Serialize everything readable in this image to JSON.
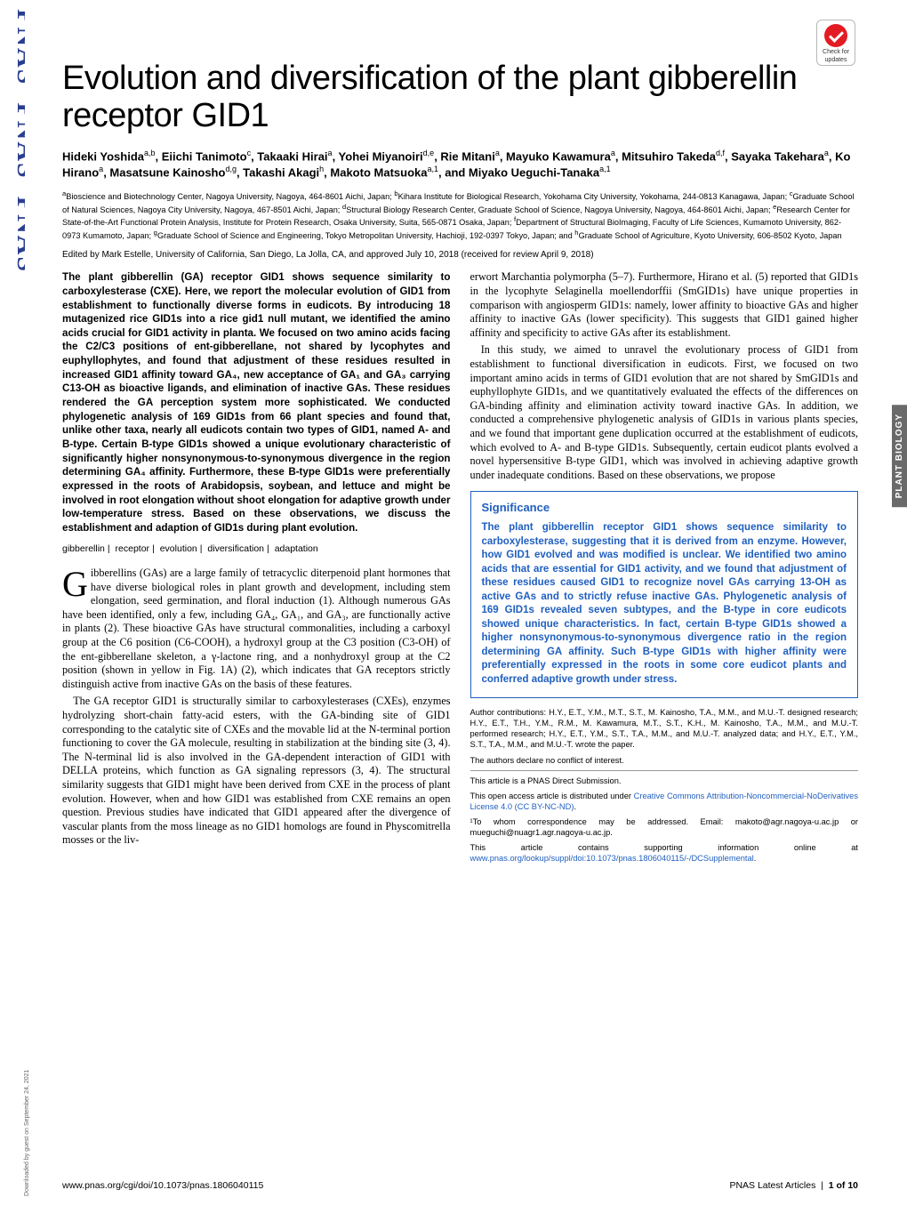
{
  "badge": {
    "line1": "Check for",
    "line2": "updates"
  },
  "title": "Evolution and diversification of the plant gibberellin receptor GID1",
  "authors_html": "Hideki Yoshida<sup>a,b</sup>, Eiichi Tanimoto<sup>c</sup>, Takaaki Hirai<sup>a</sup>, Yohei Miyanoiri<sup>d,e</sup>, Rie Mitani<sup>a</sup>, Mayuko Kawamura<sup>a</sup>, Mitsuhiro Takeda<sup>d,f</sup>, Sayaka Takehara<sup>a</sup>, Ko Hirano<sup>a</sup>, Masatsune Kainosho<sup>d,g</sup>, Takashi Akagi<sup>h</sup>, Makoto Matsuoka<sup>a,1</sup>, and Miyako Ueguchi-Tanaka<sup>a,1</sup>",
  "affiliations": "<sup>a</sup>Bioscience and Biotechnology Center, Nagoya University, Nagoya, 464-8601 Aichi, Japan; <sup>b</sup>Kihara Institute for Biological Research, Yokohama City University, Yokohama, 244-0813 Kanagawa, Japan; <sup>c</sup>Graduate School of Natural Sciences, Nagoya City University, Nagoya, 467-8501 Aichi, Japan; <sup>d</sup>Structural Biology Research Center, Graduate School of Science, Nagoya University, Nagoya, 464-8601 Aichi, Japan; <sup>e</sup>Research Center for State-of-the-Art Functional Protein Analysis, Institute for Protein Research, Osaka University, Suita, 565-0871 Osaka, Japan; <sup>f</sup>Department of Structural BioImaging, Faculty of Life Sciences, Kumamoto University, 862-0973 Kumamoto, Japan; <sup>g</sup>Graduate School of Science and Engineering, Tokyo Metropolitan University, Hachioji, 192-0397 Tokyo, Japan; and <sup>h</sup>Graduate School of Agriculture, Kyoto University, 606-8502 Kyoto, Japan",
  "edited": "Edited by Mark Estelle, University of California, San Diego, La Jolla, CA, and approved July 10, 2018 (received for review April 9, 2018)",
  "abstract": "The plant gibberellin (GA) receptor GID1 shows sequence similarity to carboxylesterase (CXE). Here, we report the molecular evolution of GID1 from establishment to functionally diverse forms in eudicots. By introducing 18 mutagenized rice GID1s into a rice gid1 null mutant, we identified the amino acids crucial for GID1 activity in planta. We focused on two amino acids facing the C2/C3 positions of ent-gibberellane, not shared by lycophytes and euphyllophytes, and found that adjustment of these residues resulted in increased GID1 affinity toward GA₄, new acceptance of GA₁ and GA₃ carrying C13-OH as bioactive ligands, and elimination of inactive GAs. These residues rendered the GA perception system more sophisticated. We conducted phylogenetic analysis of 169 GID1s from 66 plant species and found that, unlike other taxa, nearly all eudicots contain two types of GID1, named A- and B-type. Certain B-type GID1s showed a unique evolutionary characteristic of significantly higher nonsynonymous-to-synonymous divergence in the region determining GA₄ affinity. Furthermore, these B-type GID1s were preferentially expressed in the roots of Arabidopsis, soybean, and lettuce and might be involved in root elongation without shoot elongation for adaptive growth under low-temperature stress. Based on these observations, we discuss the establishment and adaption of GID1s during plant evolution.",
  "keywords": [
    "gibberellin",
    "receptor",
    "evolution",
    "diversification",
    "adaptation"
  ],
  "body": {
    "p1": "Gibberellins (GAs) are a large family of tetracyclic diterpenoid plant hormones that have diverse biological roles in plant growth and development, including stem elongation, seed germination, and floral induction (1). Although numerous GAs have been identified, only a few, including GA₄, GA₁, and GA₃, are functionally active in plants (2). These bioactive GAs have structural commonalities, including a carboxyl group at the C6 position (C6-COOH), a hydroxyl group at the C3 position (C3-OH) of the ent-gibberellane skeleton, a γ-lactone ring, and a nonhydroxyl group at the C2 position (shown in yellow in Fig. 1A) (2), which indicates that GA receptors strictly distinguish active from inactive GAs on the basis of these features.",
    "p2": "The GA receptor GID1 is structurally similar to carboxylesterases (CXEs), enzymes hydrolyzing short-chain fatty-acid esters, with the GA-binding site of GID1 corresponding to the catalytic site of CXEs and the movable lid at the N-terminal portion functioning to cover the GA molecule, resulting in stabilization at the binding site (3, 4). The N-terminal lid is also involved in the GA-dependent interaction of GID1 with DELLA proteins, which function as GA signaling repressors (3, 4). The structural similarity suggests that GID1 might have been derived from CXE in the process of plant evolution. However, when and how GID1 was established from CXE remains an open question. Previous studies have indicated that GID1 appeared after the divergence of vascular plants from the moss lineage as no GID1 homologs are found in Physcomitrella mosses or the liv-",
    "p3": "erwort Marchantia polymorpha (5–7). Furthermore, Hirano et al. (5) reported that GID1s in the lycophyte Selaginella moellendorffii (SmGID1s) have unique properties in comparison with angiosperm GID1s: namely, lower affinity to bioactive GAs and higher affinity to inactive GAs (lower specificity). This suggests that GID1 gained higher affinity and specificity to active GAs after its establishment.",
    "p4": "In this study, we aimed to unravel the evolutionary process of GID1 from establishment to functional diversification in eudicots. First, we focused on two important amino acids in terms of GID1 evolution that are not shared by SmGID1s and euphyllophyte GID1s, and we quantitatively evaluated the effects of the differences on GA-binding affinity and elimination activity toward inactive GAs. In addition, we conducted a comprehensive phylogenetic analysis of GID1s in various plants species, and we found that important gene duplication occurred at the establishment of eudicots, which evolved to A- and B-type GID1s. Subsequently, certain eudicot plants evolved a novel hypersensitive B-type GID1, which was involved in achieving adaptive growth under inadequate conditions. Based on these observations, we propose"
  },
  "significance": {
    "heading": "Significance",
    "text": "The plant gibberellin receptor GID1 shows sequence similarity to carboxylesterase, suggesting that it is derived from an enzyme. However, how GID1 evolved and was modified is unclear. We identified two amino acids that are essential for GID1 activity, and we found that adjustment of these residues caused GID1 to recognize novel GAs carrying 13-OH as active GAs and to strictly refuse inactive GAs. Phylogenetic analysis of 169 GID1s revealed seven subtypes, and the B-type in core eudicots showed unique characteristics. In fact, certain B-type GID1s showed a higher nonsynonymous-to-synonymous divergence ratio in the region determining GA affinity. Such B-type GID1s with higher affinity were preferentially expressed in the roots in some core eudicot plants and conferred adaptive growth under stress."
  },
  "footnotes": {
    "contrib": "Author contributions: H.Y., E.T., Y.M., M.T., S.T., M. Kainosho, T.A., M.M., and M.U.-T. designed research; H.Y., E.T., T.H., Y.M., R.M., M. Kawamura, M.T., S.T., K.H., M. Kainosho, T.A., M.M., and M.U.-T. performed research; H.Y., E.T., Y.M., S.T., T.A., M.M., and M.U.-T. analyzed data; and H.Y., E.T., Y.M., S.T., T.A., M.M., and M.U.-T. wrote the paper.",
    "coi": "The authors declare no conflict of interest.",
    "direct": "This article is a PNAS Direct Submission.",
    "license_pre": "This open access article is distributed under ",
    "license_link": "Creative Commons Attribution-Noncommercial-NoDerivatives License 4.0 (CC BY-NC-ND)",
    "license_post": ".",
    "corr": "¹To whom correspondence may be addressed. Email: makoto@agr.nagoya-u.ac.jp or mueguchi@nuagr1.agr.nagoya-u.ac.jp.",
    "supp_pre": "This article contains supporting information online at ",
    "supp_link": "www.pnas.org/lookup/suppl/doi:10.1073/pnas.1806040115/-/DCSupplemental",
    "supp_post": "."
  },
  "footer": {
    "left": "www.pnas.org/cgi/doi/10.1073/pnas.1806040115",
    "right_label": "PNAS Latest Articles",
    "right_page": "1 of 10"
  },
  "sidetab": "PLANT BIOLOGY",
  "downloaded": "Downloaded by guest on September 24, 2021",
  "colors": {
    "link": "#1f5fbf",
    "sigbox_border": "#1f5fbf",
    "side_tab_bg": "#6a6a6a",
    "badge_red": "#e31b23",
    "pnas_blue": "#2a3e8f"
  }
}
